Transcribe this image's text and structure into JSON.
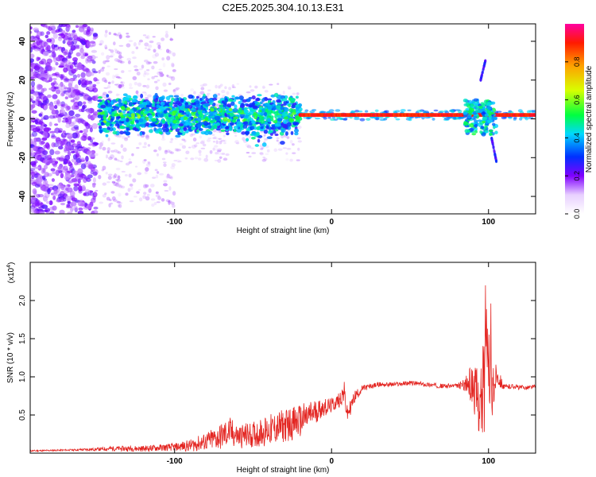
{
  "title": "C2E5.2025.304.10.13.E31",
  "chart_data": [
    {
      "type": "heatmap",
      "xlabel": "Height of straight line (km)",
      "ylabel": "Frequency (Hz)",
      "xlim": [
        -192,
        130
      ],
      "ylim": [
        -49,
        49
      ],
      "xticks": [
        -100,
        0,
        100
      ],
      "yticks": [
        -40,
        -20,
        0,
        20,
        40
      ],
      "colorbar": {
        "label": "Normalized spectral amplitude",
        "range": [
          0,
          1
        ],
        "ticks": [
          0.0,
          0.2,
          0.4,
          0.6,
          0.8
        ],
        "tick_labels": [
          "0.0",
          "0.2",
          "0.4",
          "0.6",
          "0.8"
        ]
      },
      "regions": [
        {
          "name": "scattered noise",
          "x_range": [
            -192,
            -150
          ],
          "freq_range": [
            -49,
            49
          ],
          "amplitude": 0.1
        },
        {
          "name": "faint scatter",
          "x_range": [
            -150,
            -100
          ],
          "freq_range": [
            -45,
            45
          ],
          "amplitude": 0.03
        },
        {
          "name": "broadband signal",
          "x_range": [
            -148,
            -20
          ],
          "freq_range": [
            -15,
            12
          ],
          "amplitude": 0.35
        },
        {
          "name": "narrowband line",
          "x_range": [
            -20,
            130
          ],
          "center_freq": 2,
          "amplitude": 0.9
        },
        {
          "name": "burst",
          "x_range": [
            85,
            105
          ],
          "freq_range": [
            -20,
            30
          ],
          "amplitude": 0.4
        }
      ]
    },
    {
      "type": "line",
      "xlabel": "Height of straight line (km)",
      "ylabel": "SNR (10 * v/v)",
      "yscale_label": "(x10",
      "yscale_exp": "4",
      "xlim": [
        -192,
        130
      ],
      "ylim": [
        0,
        2.5
      ],
      "xticks": [
        -100,
        0,
        100
      ],
      "yticks": [
        0.5,
        1.0,
        1.5,
        2.0
      ],
      "ytick_labels": [
        "0.5",
        "1.0",
        "1.5",
        "2.0"
      ],
      "series": [
        {
          "name": "SNR",
          "color": "#e32420",
          "x": [
            -192,
            -170,
            -150,
            -140,
            -120,
            -100,
            -90,
            -80,
            -70,
            -65,
            -60,
            -50,
            -40,
            -30,
            -20,
            -15,
            -10,
            -5,
            0,
            5,
            8,
            10,
            12,
            15,
            20,
            30,
            40,
            50,
            60,
            70,
            80,
            85,
            90,
            95,
            98,
            100,
            102,
            105,
            110,
            115,
            120,
            125,
            130
          ],
          "y": [
            0.03,
            0.04,
            0.05,
            0.06,
            0.06,
            0.08,
            0.1,
            0.15,
            0.22,
            0.28,
            0.22,
            0.24,
            0.3,
            0.36,
            0.42,
            0.48,
            0.55,
            0.6,
            0.62,
            0.7,
            0.8,
            0.5,
            0.6,
            0.75,
            0.85,
            0.9,
            0.9,
            0.92,
            0.9,
            0.88,
            0.88,
            0.9,
            0.9,
            0.6,
            1.2,
            0.9,
            0.7,
            1.05,
            0.86,
            0.88,
            0.86,
            0.86,
            0.87
          ],
          "spread": [
            0.01,
            0.01,
            0.02,
            0.03,
            0.04,
            0.05,
            0.08,
            0.12,
            0.18,
            0.2,
            0.16,
            0.17,
            0.2,
            0.22,
            0.22,
            0.2,
            0.16,
            0.12,
            0.1,
            0.1,
            0.15,
            0.12,
            0.1,
            0.08,
            0.04,
            0.03,
            0.03,
            0.03,
            0.03,
            0.03,
            0.03,
            0.08,
            0.3,
            0.45,
            0.9,
            0.6,
            0.4,
            0.15,
            0.04,
            0.03,
            0.03,
            0.03,
            0.03
          ]
        }
      ]
    }
  ]
}
